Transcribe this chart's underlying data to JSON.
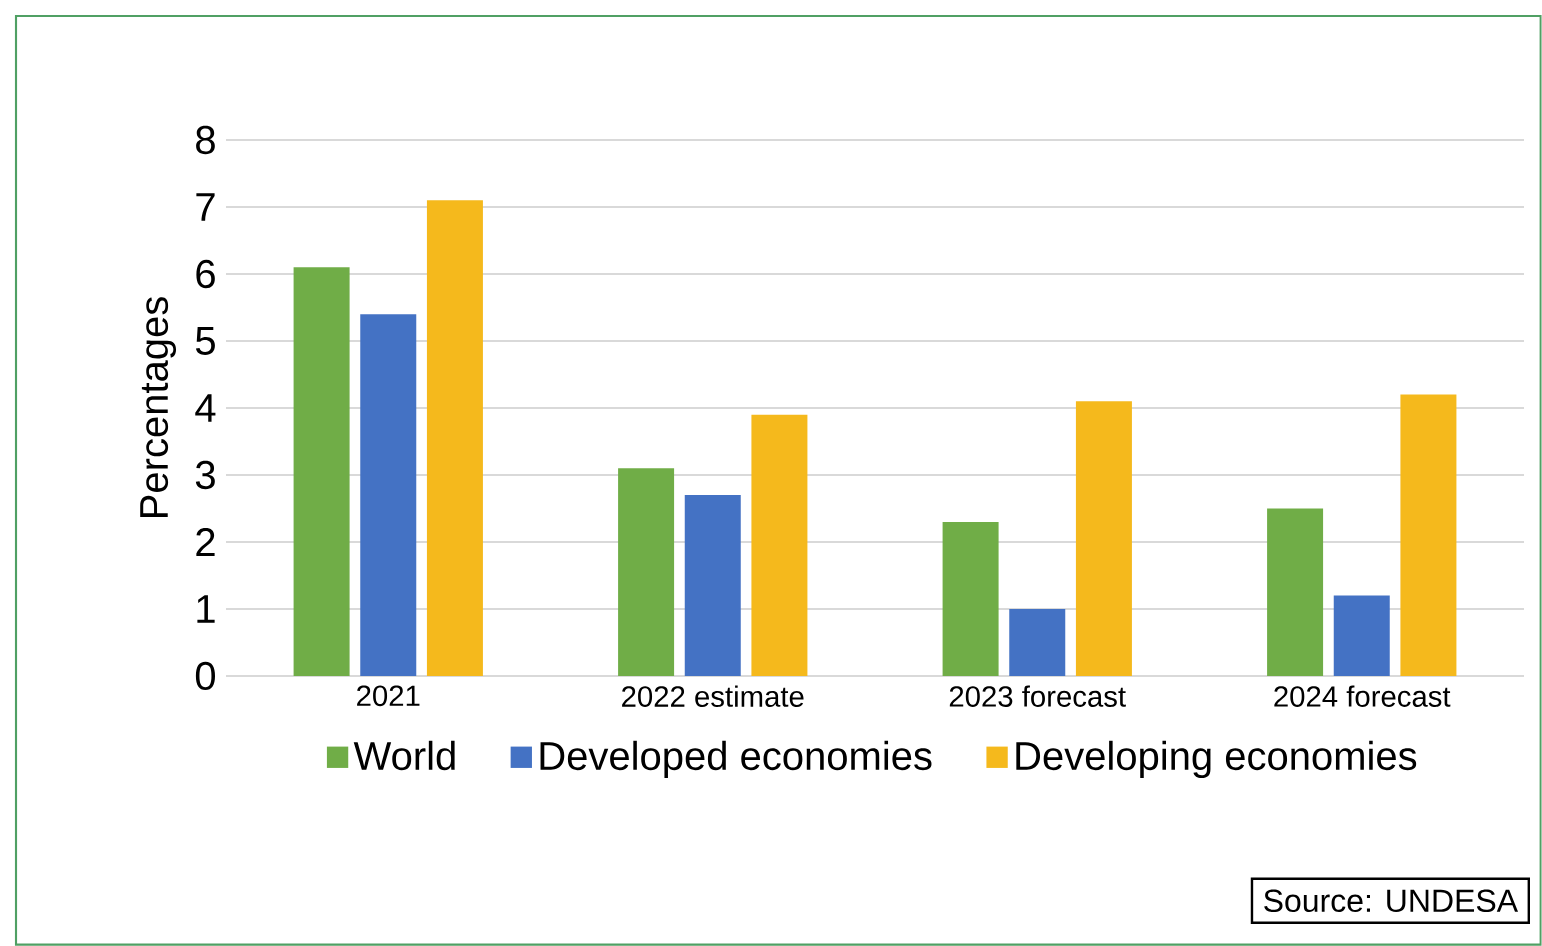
{
  "chart_data": {
    "type": "bar",
    "ylabel": "Percentages",
    "categories": [
      "2021",
      "2022 estimate",
      "2023 forecast",
      "2024 forecast"
    ],
    "series": [
      {
        "name": "World",
        "color": "#70ad47",
        "values": [
          6.1,
          3.1,
          2.3,
          2.5
        ]
      },
      {
        "name": "Developed economies",
        "color": "#4472c4",
        "values": [
          5.4,
          2.7,
          1.0,
          1.2
        ]
      },
      {
        "name": "Developing economies",
        "color": "#f5b91c",
        "values": [
          7.1,
          3.9,
          4.1,
          4.2
        ]
      }
    ],
    "ylim": [
      0,
      8
    ],
    "yticks": [
      0,
      1,
      2,
      3,
      4,
      5,
      6,
      7,
      8
    ],
    "grid": "y",
    "legend": "bottom",
    "annotations": [
      "Source: UNDESA"
    ]
  }
}
